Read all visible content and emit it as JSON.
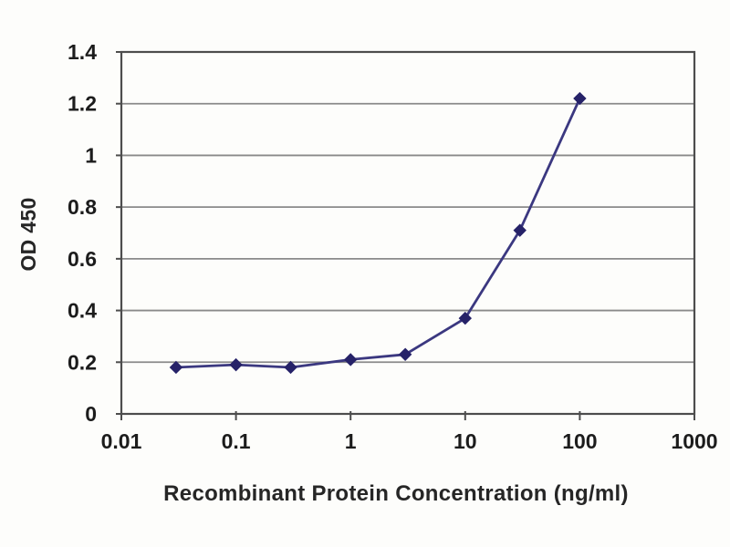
{
  "chart_data": {
    "type": "line",
    "title": "",
    "xlabel": "Recombinant Protein Concentration (ng/ml)",
    "ylabel": "OD 450",
    "x_scale": "log",
    "xlim": [
      0.01,
      1000
    ],
    "ylim": [
      0,
      1.4
    ],
    "x_tick_values": [
      0.01,
      0.1,
      1,
      10,
      100,
      1000
    ],
    "x_tick_labels": [
      "0.01",
      "0.1",
      "1",
      "10",
      "100",
      "1000"
    ],
    "y_tick_values": [
      0,
      0.2,
      0.4,
      0.6,
      0.8,
      1,
      1.2,
      1.4
    ],
    "y_tick_labels": [
      "0",
      "0.2",
      "0.4",
      "0.6",
      "0.8",
      "1",
      "1.2",
      "1.4"
    ],
    "grid": "horizontal-only",
    "legend_position": "none",
    "marker": "diamond",
    "series": [
      {
        "name": "OD 450",
        "x": [
          0.03,
          0.1,
          0.3,
          1,
          3,
          10,
          30,
          100
        ],
        "y": [
          0.18,
          0.19,
          0.18,
          0.21,
          0.23,
          0.37,
          0.71,
          1.22
        ]
      }
    ],
    "colors": {
      "line": "#3b3880",
      "marker": "#262268",
      "grid": "#8a8a8a",
      "axis": "#4d4d4d",
      "text": "#1c1c1c",
      "background": "#fdfdfb"
    }
  }
}
